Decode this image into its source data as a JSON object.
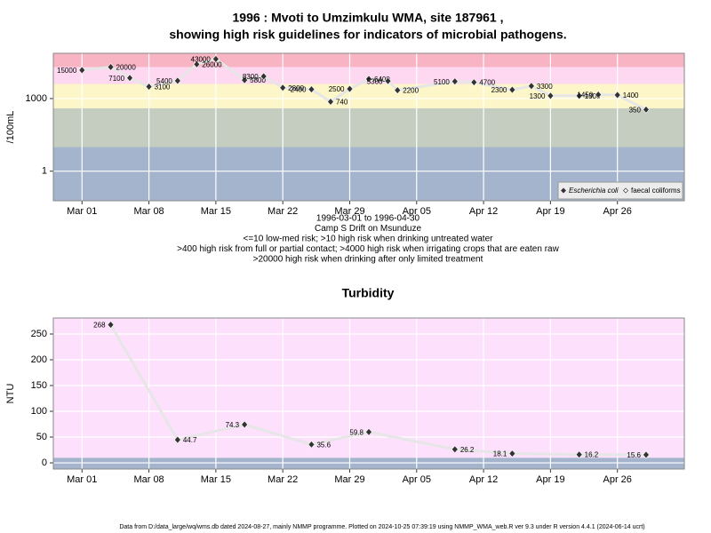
{
  "chart_data": [
    {
      "type": "line",
      "title": "1996 : Mvoti to Umzimkulu WMA, site 187961 ,",
      "title2": "showing high risk guidelines for indicators of microbial pathogens.",
      "subtitle": [
        "1996-03-01 to 1996-04-30",
        "Camp S Drift on Msunduze",
        "<=10 low-med risk; >10 high risk when drinking untreated water",
        ">400 high risk from full or partial contact; >4000 high risk when irrigating crops that are eaten raw",
        ">20000 high risk when drinking after only limited treatment"
      ],
      "ylabel": "/100mL",
      "log_y": true,
      "grid": true,
      "legend": "bottom-right",
      "xlim": [
        "1996-02-27",
        "1996-05-03"
      ],
      "xticks": [
        {
          "value": "1996-03-01",
          "label": "Mar 01"
        },
        {
          "value": "1996-03-08",
          "label": "Mar 08"
        },
        {
          "value": "1996-03-15",
          "label": "Mar 15"
        },
        {
          "value": "1996-03-22",
          "label": "Mar 22"
        },
        {
          "value": "1996-03-29",
          "label": "Mar 29"
        },
        {
          "value": "1996-04-05",
          "label": "Apr 05"
        },
        {
          "value": "1996-04-12",
          "label": "Apr 12"
        },
        {
          "value": "1996-04-19",
          "label": "Apr 19"
        },
        {
          "value": "1996-04-26",
          "label": "Apr 26"
        }
      ],
      "ylim": [
        0.06,
        74000
      ],
      "yticks": [
        1,
        1000
      ],
      "thresholds": [
        10,
        400,
        4000,
        20000
      ],
      "band_colors": [
        "#a3b4cc",
        "#c4cdc0",
        "#fdf6c8",
        "#fdd8f0",
        "#f9b4c4"
      ],
      "x": [
        "1996-03-01",
        "1996-03-04",
        "1996-03-06",
        "1996-03-08",
        "1996-03-11",
        "1996-03-13",
        "1996-03-15",
        "1996-03-18",
        "1996-03-20",
        "1996-03-22",
        "1996-03-25",
        "1996-03-27",
        "1996-03-29",
        "1996-03-31",
        "1996-04-02",
        "1996-04-03",
        "1996-04-09",
        "1996-04-11",
        "1996-04-15",
        "1996-04-17",
        "1996-04-19",
        "1996-04-22",
        "1996-04-24",
        "1996-04-26",
        "1996-04-29"
      ],
      "series": [
        {
          "name": "Escherichia coli",
          "color": "#333333",
          "values": [
            15000,
            20000,
            7100,
            3100,
            5400,
            26000,
            43000,
            5800,
            8300,
            2800,
            2400,
            740,
            2500,
            6400,
            5300,
            2200,
            5100,
            4700,
            2300,
            3300,
            1300,
            1300,
            1450,
            1400,
            350
          ]
        },
        {
          "name": "faecal coliforms",
          "color": "#333333",
          "values": [
            null,
            null,
            null,
            null,
            null,
            null,
            null,
            null,
            null,
            null,
            null,
            null,
            null,
            null,
            null,
            null,
            null,
            null,
            null,
            null,
            null,
            null,
            null,
            null,
            null
          ]
        }
      ]
    },
    {
      "type": "line",
      "title": "Turbidity",
      "ylabel": "NTU",
      "grid": true,
      "xlim": [
        "1996-02-27",
        "1996-05-03"
      ],
      "xticks": [
        {
          "value": "1996-03-01",
          "label": "Mar 01"
        },
        {
          "value": "1996-03-08",
          "label": "Mar 08"
        },
        {
          "value": "1996-03-15",
          "label": "Mar 15"
        },
        {
          "value": "1996-03-22",
          "label": "Mar 22"
        },
        {
          "value": "1996-03-29",
          "label": "Mar 29"
        },
        {
          "value": "1996-04-05",
          "label": "Apr 05"
        },
        {
          "value": "1996-04-12",
          "label": "Apr 12"
        },
        {
          "value": "1996-04-19",
          "label": "Apr 19"
        },
        {
          "value": "1996-04-26",
          "label": "Apr 26"
        }
      ],
      "ylim": [
        -12,
        281
      ],
      "yticks": [
        0,
        50,
        100,
        150,
        200,
        250
      ],
      "thresholds": [
        10
      ],
      "band_colors": [
        "#a3b4cc",
        "#fde0fc"
      ],
      "x": [
        "1996-03-04",
        "1996-03-11",
        "1996-03-18",
        "1996-03-25",
        "1996-03-31",
        "1996-04-09",
        "1996-04-15",
        "1996-04-22",
        "1996-04-29"
      ],
      "series": [
        {
          "name": "Turbidity",
          "color": "#333333",
          "values": [
            268,
            44.7,
            74.3,
            35.6,
            59.8,
            26.2,
            18.1,
            16.2,
            15.6
          ]
        }
      ]
    }
  ],
  "footer": "Data from D:/data_large/wq/wms.db dated 2024-08-27, mainly NMMP programme. Plotted on 2024-10-25 07:39:19 using NMMP_WMA_web.R ver 9.3 under R version 4.4.1 (2024-06-14 ucrt)"
}
